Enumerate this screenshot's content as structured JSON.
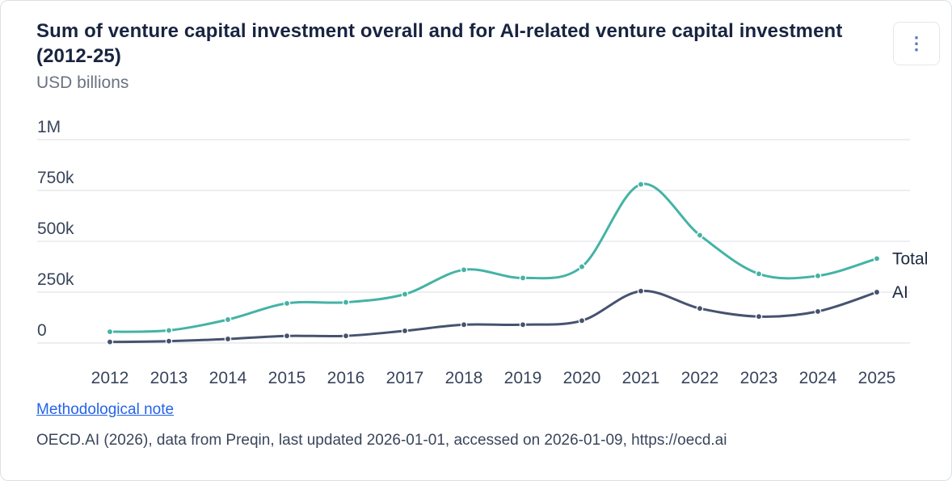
{
  "header": {
    "title": "Sum of venture capital investment overall and for AI-related venture capital investment (2012-25)",
    "subtitle": "USD billions",
    "menu_icon": "⋮"
  },
  "footer": {
    "link_label": "Methodological note",
    "source": "OECD.AI (2026), data from Preqin, last updated 2026-01-01, accessed on 2026-01-09, https://oecd.ai"
  },
  "chart_data": {
    "type": "line",
    "title": "Sum of venture capital investment overall and for AI-related venture capital investment (2012-25)",
    "unit": "USD billions",
    "smooth": true,
    "grid": true,
    "legend_position": "end-of-line",
    "x": [
      "2012",
      "2013",
      "2014",
      "2015",
      "2016",
      "2017",
      "2018",
      "2019",
      "2020",
      "2021",
      "2022",
      "2023",
      "2024",
      "2025"
    ],
    "series": [
      {
        "name": "Total",
        "color": "#44b3a6",
        "values": [
          55000,
          62000,
          115000,
          195000,
          200000,
          240000,
          360000,
          320000,
          375000,
          780000,
          530000,
          340000,
          330000,
          415000
        ]
      },
      {
        "name": "AI",
        "color": "#46536f",
        "values": [
          5000,
          9000,
          20000,
          35000,
          35000,
          60000,
          90000,
          90000,
          110000,
          255000,
          170000,
          130000,
          155000,
          250000
        ]
      }
    ],
    "ylim": [
      0,
      1000000
    ],
    "yticks": [
      {
        "value": 0,
        "label": "0"
      },
      {
        "value": 250000,
        "label": "250k"
      },
      {
        "value": 500000,
        "label": "500k"
      },
      {
        "value": 750000,
        "label": "750k"
      },
      {
        "value": 1000000,
        "label": "1M"
      }
    ],
    "xlabel": "",
    "ylabel": "USD billions"
  }
}
